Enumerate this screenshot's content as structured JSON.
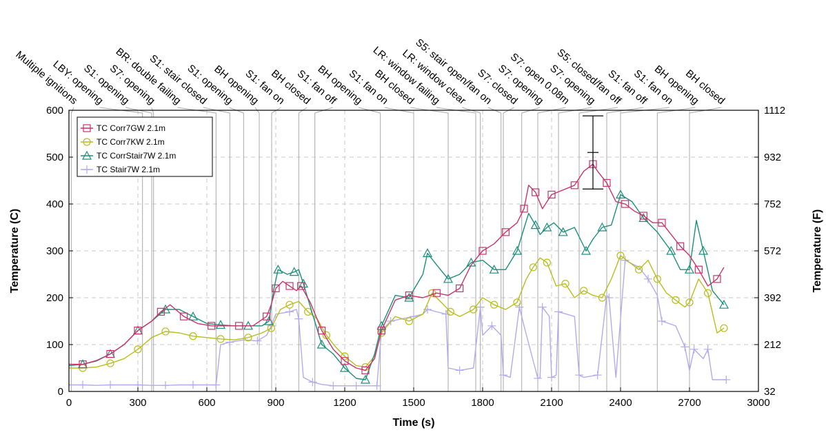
{
  "chart_data": {
    "type": "line",
    "xlabel": "Time (s)",
    "ylabel": "Temperature (C)",
    "y2label": "Temperature (F)",
    "xlim": [
      0,
      3000
    ],
    "ylim": [
      0,
      600
    ],
    "xticks": [
      0,
      300,
      600,
      900,
      1200,
      1500,
      1800,
      2100,
      2400,
      2700,
      3000
    ],
    "yticks": [
      0,
      100,
      200,
      300,
      400,
      500,
      600
    ],
    "y2ticks": [
      "32",
      "212",
      "392",
      "572",
      "752",
      "932",
      "1112"
    ],
    "grid": "dashed",
    "legend_position": "top-left",
    "events": [
      {
        "t": 10,
        "label": "Multiple ignitions"
      },
      {
        "t": 320,
        "label": "LBY: opening"
      },
      {
        "t": 360,
        "label": "S1: opening"
      },
      {
        "t": 368,
        "label": "S7: opening"
      },
      {
        "t": 640,
        "label": "BR: double failing"
      },
      {
        "t": 700,
        "label": "S1: stair closed"
      },
      {
        "t": 760,
        "label": "S1: opening"
      },
      {
        "t": 828,
        "label": "BH opening"
      },
      {
        "t": 882,
        "label": "S1: fan on"
      },
      {
        "t": 1000,
        "label": "BH closed"
      },
      {
        "t": 1070,
        "label": "S1: fan off"
      },
      {
        "t": 1355,
        "label": "BH opening"
      },
      {
        "t": 1500,
        "label": "S1: fan on"
      },
      {
        "t": 1650,
        "label": "BH closed"
      },
      {
        "t": 1770,
        "label": "LR: window failing"
      },
      {
        "t": 1790,
        "label": "LR: window clear"
      },
      {
        "t": 1880,
        "label": "S5: stair open/fan on"
      },
      {
        "t": 1890,
        "label": "S7: closed"
      },
      {
        "t": 1970,
        "label": "S7: opening"
      },
      {
        "t": 2040,
        "label": "S7: open 0.08m"
      },
      {
        "t": 2130,
        "label": "S7: opening"
      },
      {
        "t": 2220,
        "label": "S5: closed/fan off"
      },
      {
        "t": 2340,
        "label": "S1: fan off"
      },
      {
        "t": 2400,
        "label": "S1: fan on"
      },
      {
        "t": 2560,
        "label": "BH opening"
      },
      {
        "t": 2700,
        "label": "BH closed"
      }
    ],
    "error_bar": {
      "x": 2280,
      "y": 510,
      "low": 432,
      "high": 588
    },
    "series": [
      {
        "name": "TC Corr7GW 2.1m",
        "color": "#c8336b",
        "marker": "square",
        "x": [
          0,
          60,
          120,
          180,
          240,
          300,
          360,
          400,
          440,
          500,
          560,
          620,
          680,
          740,
          800,
          860,
          880,
          900,
          930,
          960,
          990,
          1010,
          1050,
          1100,
          1150,
          1200,
          1250,
          1290,
          1330,
          1360,
          1420,
          1480,
          1540,
          1600,
          1650,
          1700,
          1750,
          1800,
          1850,
          1900,
          1950,
          1980,
          2000,
          2030,
          2060,
          2100,
          2150,
          2200,
          2240,
          2280,
          2300,
          2340,
          2380,
          2420,
          2460,
          2500,
          2540,
          2580,
          2620,
          2660,
          2700,
          2740,
          2780,
          2820,
          2850
        ],
        "y": [
          58,
          58,
          66,
          80,
          100,
          130,
          150,
          170,
          185,
          160,
          145,
          140,
          140,
          140,
          140,
          160,
          185,
          220,
          235,
          225,
          215,
          225,
          190,
          130,
          90,
          65,
          50,
          45,
          70,
          130,
          195,
          205,
          200,
          210,
          205,
          220,
          270,
          300,
          315,
          340,
          360,
          390,
          440,
          425,
          390,
          420,
          430,
          440,
          470,
          485,
          470,
          445,
          405,
          400,
          385,
          375,
          360,
          360,
          335,
          310,
          290,
          260,
          225,
          240,
          265
        ]
      },
      {
        "name": "TC Corr7KW 2.1m",
        "color": "#b8bd1a",
        "marker": "circle",
        "x": [
          0,
          60,
          120,
          180,
          240,
          300,
          360,
          420,
          480,
          540,
          600,
          660,
          720,
          780,
          840,
          880,
          920,
          960,
          1000,
          1040,
          1080,
          1120,
          1160,
          1200,
          1250,
          1290,
          1330,
          1360,
          1420,
          1480,
          1540,
          1580,
          1620,
          1660,
          1700,
          1760,
          1800,
          1850,
          1900,
          1950,
          1990,
          2020,
          2050,
          2080,
          2120,
          2160,
          2200,
          2240,
          2280,
          2320,
          2360,
          2400,
          2440,
          2480,
          2520,
          2560,
          2600,
          2640,
          2680,
          2700,
          2740,
          2780,
          2820,
          2850
        ],
        "y": [
          50,
          50,
          52,
          60,
          70,
          90,
          115,
          128,
          125,
          118,
          115,
          112,
          110,
          115,
          125,
          135,
          175,
          185,
          192,
          170,
          155,
          120,
          95,
          75,
          55,
          52,
          75,
          125,
          160,
          150,
          165,
          210,
          190,
          170,
          160,
          175,
          200,
          185,
          175,
          190,
          240,
          265,
          285,
          275,
          225,
          230,
          200,
          215,
          205,
          200,
          240,
          290,
          275,
          260,
          280,
          240,
          210,
          195,
          180,
          190,
          240,
          210,
          125,
          135
        ]
      },
      {
        "name": "TC CorrStair7W 2.1m",
        "color": "#1a8f7a",
        "marker": "triangle",
        "x": [
          0,
          60,
          120,
          180,
          240,
          300,
          360,
          420,
          480,
          540,
          600,
          660,
          720,
          780,
          840,
          870,
          890,
          910,
          950,
          980,
          1000,
          1020,
          1060,
          1100,
          1150,
          1200,
          1250,
          1290,
          1330,
          1360,
          1420,
          1480,
          1540,
          1560,
          1600,
          1650,
          1700,
          1750,
          1800,
          1850,
          1900,
          1950,
          2000,
          2030,
          2050,
          2080,
          2110,
          2150,
          2200,
          2250,
          2280,
          2320,
          2360,
          2400,
          2450,
          2500,
          2560,
          2620,
          2660,
          2700,
          2730,
          2760,
          2800,
          2850
        ],
        "y": [
          55,
          58,
          65,
          80,
          100,
          130,
          150,
          175,
          175,
          160,
          145,
          142,
          140,
          140,
          140,
          150,
          215,
          260,
          250,
          255,
          260,
          230,
          165,
          100,
          80,
          50,
          28,
          25,
          80,
          140,
          205,
          200,
          250,
          295,
          270,
          240,
          250,
          275,
          280,
          260,
          260,
          300,
          380,
          355,
          335,
          350,
          360,
          340,
          350,
          300,
          325,
          350,
          355,
          420,
          405,
          370,
          340,
          300,
          260,
          260,
          365,
          300,
          215,
          185
        ]
      },
      {
        "name": "TC Stair7W 2.1m",
        "color": "#b3aaee",
        "marker": "plus",
        "x": [
          0,
          60,
          120,
          180,
          240,
          300,
          360,
          420,
          480,
          540,
          600,
          640,
          660,
          700,
          760,
          820,
          860,
          880,
          900,
          960,
          990,
          1000,
          1020,
          1060,
          1100,
          1150,
          1200,
          1250,
          1300,
          1340,
          1360,
          1400,
          1450,
          1500,
          1540,
          1560,
          1600,
          1640,
          1650,
          1700,
          1760,
          1790,
          1800,
          1840,
          1880,
          1890,
          1920,
          1960,
          1980,
          2040,
          2050,
          2060,
          2090,
          2100,
          2120,
          2130,
          2200,
          2220,
          2240,
          2300,
          2340,
          2350,
          2380,
          2420,
          2480,
          2520,
          2560,
          2580,
          2640,
          2680,
          2700,
          2720,
          2760,
          2780,
          2800,
          2860
        ],
        "y": [
          14,
          14,
          13,
          14,
          14,
          14,
          13,
          13,
          14,
          14,
          14,
          14,
          100,
          105,
          110,
          108,
          120,
          140,
          165,
          170,
          175,
          155,
          30,
          20,
          15,
          12,
          12,
          12,
          12,
          12,
          130,
          150,
          155,
          160,
          165,
          175,
          170,
          165,
          50,
          45,
          50,
          180,
          120,
          140,
          120,
          35,
          30,
          180,
          140,
          28,
          30,
          180,
          160,
          30,
          35,
          170,
          160,
          35,
          30,
          35,
          205,
          200,
          30,
          280,
          265,
          240,
          205,
          150,
          140,
          95,
          45,
          90,
          70,
          90,
          25,
          25
        ]
      }
    ]
  }
}
